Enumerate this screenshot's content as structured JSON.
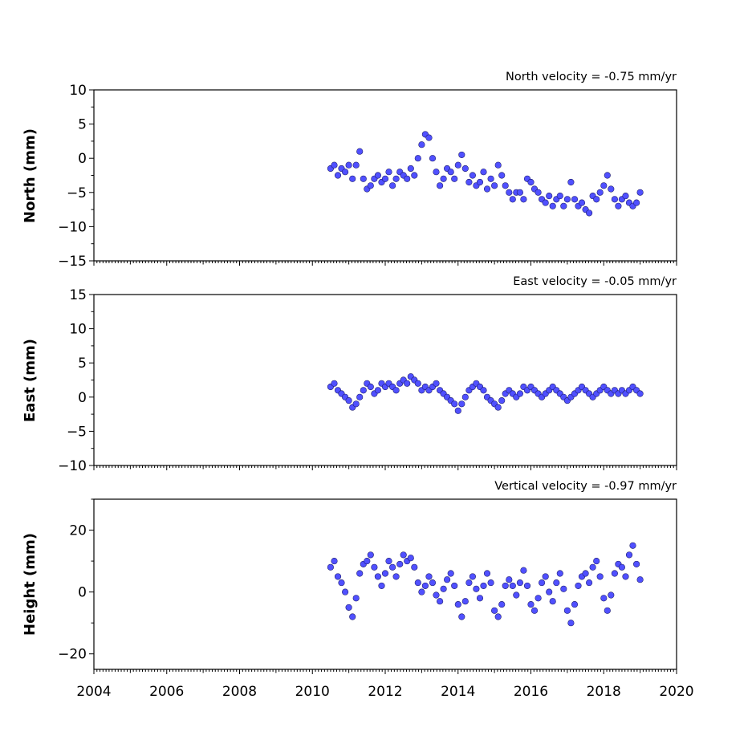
{
  "chart_data": [
    {
      "type": "scatter",
      "title": "North velocity = -0.75 mm/yr",
      "ylabel": "North (mm)",
      "xlim": [
        2004,
        2020
      ],
      "ylim": [
        -15,
        10
      ],
      "yticks": [
        -15,
        -10,
        -5,
        0,
        5,
        10
      ],
      "xticks": [
        2004,
        2006,
        2008,
        2010,
        2012,
        2014,
        2016,
        2018,
        2020
      ],
      "series": [
        {
          "color": "#5050ff",
          "x": [
            2010.5,
            2010.6,
            2010.7,
            2010.8,
            2010.9,
            2011.0,
            2011.1,
            2011.2,
            2011.3,
            2011.4,
            2011.5,
            2011.6,
            2011.7,
            2011.8,
            2011.9,
            2012.0,
            2012.1,
            2012.2,
            2012.3,
            2012.4,
            2012.5,
            2012.6,
            2012.7,
            2012.8,
            2012.9,
            2013.0,
            2013.1,
            2013.2,
            2013.3,
            2013.4,
            2013.5,
            2013.6,
            2013.7,
            2013.8,
            2013.9,
            2014.0,
            2014.1,
            2014.2,
            2014.3,
            2014.4,
            2014.5,
            2014.6,
            2014.7,
            2014.8,
            2014.9,
            2015.0,
            2015.1,
            2015.2,
            2015.3,
            2015.4,
            2015.5,
            2015.6,
            2015.7,
            2015.8,
            2015.9,
            2016.0,
            2016.1,
            2016.2,
            2016.3,
            2016.4,
            2016.5,
            2016.6,
            2016.7,
            2016.8,
            2016.9,
            2017.0,
            2017.1,
            2017.2,
            2017.3,
            2017.4,
            2017.5,
            2017.6,
            2017.7,
            2017.8,
            2017.9,
            2018.0,
            2018.1,
            2018.2,
            2018.3,
            2018.4,
            2018.5,
            2018.6,
            2018.7,
            2018.8,
            2018.9,
            2019.0
          ],
          "y": [
            -1.5,
            -1.0,
            -2.5,
            -1.5,
            -2.0,
            -1.0,
            -3.0,
            -1.0,
            1.0,
            -3.0,
            -4.5,
            -4.0,
            -3.0,
            -2.5,
            -3.5,
            -3.0,
            -2.0,
            -4.0,
            -3.0,
            -2.0,
            -2.5,
            -3.0,
            -1.5,
            -2.5,
            0.0,
            2.0,
            3.5,
            3.0,
            0.0,
            -2.0,
            -4.0,
            -3.0,
            -1.5,
            -2.0,
            -3.0,
            -1.0,
            0.5,
            -1.5,
            -3.5,
            -2.5,
            -4.0,
            -3.5,
            -2.0,
            -4.5,
            -3.0,
            -4.0,
            -1.0,
            -2.5,
            -4.0,
            -5.0,
            -6.0,
            -5.0,
            -5.0,
            -6.0,
            -3.0,
            -3.5,
            -4.5,
            -5.0,
            -6.0,
            -6.5,
            -5.5,
            -7.0,
            -6.0,
            -5.5,
            -7.0,
            -6.0,
            -3.5,
            -6.0,
            -7.0,
            -6.5,
            -7.5,
            -8.0,
            -5.5,
            -6.0,
            -5.0,
            -4.0,
            -2.5,
            -4.5,
            -6.0,
            -7.0,
            -6.0,
            -5.5,
            -6.5,
            -7.0,
            -6.5,
            -5.0
          ]
        }
      ]
    },
    {
      "type": "scatter",
      "title": "East velocity = -0.05 mm/yr",
      "ylabel": "East (mm)",
      "xlim": [
        2004,
        2020
      ],
      "ylim": [
        -10,
        15
      ],
      "yticks": [
        -10,
        -5,
        0,
        5,
        10,
        15
      ],
      "xticks": [
        2004,
        2006,
        2008,
        2010,
        2012,
        2014,
        2016,
        2018,
        2020
      ],
      "series": [
        {
          "color": "#5050ff",
          "x": [
            2010.5,
            2010.6,
            2010.7,
            2010.8,
            2010.9,
            2011.0,
            2011.1,
            2011.2,
            2011.3,
            2011.4,
            2011.5,
            2011.6,
            2011.7,
            2011.8,
            2011.9,
            2012.0,
            2012.1,
            2012.2,
            2012.3,
            2012.4,
            2012.5,
            2012.6,
            2012.7,
            2012.8,
            2012.9,
            2013.0,
            2013.1,
            2013.2,
            2013.3,
            2013.4,
            2013.5,
            2013.6,
            2013.7,
            2013.8,
            2013.9,
            2014.0,
            2014.1,
            2014.2,
            2014.3,
            2014.4,
            2014.5,
            2014.6,
            2014.7,
            2014.8,
            2014.9,
            2015.0,
            2015.1,
            2015.2,
            2015.3,
            2015.4,
            2015.5,
            2015.6,
            2015.7,
            2015.8,
            2015.9,
            2016.0,
            2016.1,
            2016.2,
            2016.3,
            2016.4,
            2016.5,
            2016.6,
            2016.7,
            2016.8,
            2016.9,
            2017.0,
            2017.1,
            2017.2,
            2017.3,
            2017.4,
            2017.5,
            2017.6,
            2017.7,
            2017.8,
            2017.9,
            2018.0,
            2018.1,
            2018.2,
            2018.3,
            2018.4,
            2018.5,
            2018.6,
            2018.7,
            2018.8,
            2018.9,
            2019.0
          ],
          "y": [
            1.5,
            2.0,
            1.0,
            0.5,
            0.0,
            -0.5,
            -1.5,
            -1.0,
            0.0,
            1.0,
            2.0,
            1.5,
            0.5,
            1.0,
            2.0,
            1.5,
            2.0,
            1.5,
            1.0,
            2.0,
            2.5,
            2.0,
            3.0,
            2.5,
            2.0,
            1.0,
            1.5,
            1.0,
            1.5,
            2.0,
            1.0,
            0.5,
            0.0,
            -0.5,
            -1.0,
            -2.0,
            -1.0,
            0.0,
            1.0,
            1.5,
            2.0,
            1.5,
            1.0,
            0.0,
            -0.5,
            -1.0,
            -1.5,
            -0.5,
            0.5,
            1.0,
            0.5,
            0.0,
            0.5,
            1.5,
            1.0,
            1.5,
            1.0,
            0.5,
            0.0,
            0.5,
            1.0,
            1.5,
            1.0,
            0.5,
            0.0,
            -0.5,
            0.0,
            0.5,
            1.0,
            1.5,
            1.0,
            0.5,
            0.0,
            0.5,
            1.0,
            1.5,
            1.0,
            0.5,
            1.0,
            0.5,
            1.0,
            0.5,
            1.0,
            1.5,
            1.0,
            0.5
          ]
        }
      ]
    },
    {
      "type": "scatter",
      "title": "Vertical velocity = -0.97 mm/yr",
      "ylabel": "Height (mm)",
      "xlim": [
        2004,
        2020
      ],
      "ylim": [
        -25,
        30
      ],
      "yticks": [
        -20,
        0,
        20
      ],
      "xticks": [
        2004,
        2006,
        2008,
        2010,
        2012,
        2014,
        2016,
        2018,
        2020
      ],
      "series": [
        {
          "color": "#5050ff",
          "x": [
            2010.5,
            2010.6,
            2010.7,
            2010.8,
            2010.9,
            2011.0,
            2011.1,
            2011.2,
            2011.3,
            2011.4,
            2011.5,
            2011.6,
            2011.7,
            2011.8,
            2011.9,
            2012.0,
            2012.1,
            2012.2,
            2012.3,
            2012.4,
            2012.5,
            2012.6,
            2012.7,
            2012.8,
            2012.9,
            2013.0,
            2013.1,
            2013.2,
            2013.3,
            2013.4,
            2013.5,
            2013.6,
            2013.7,
            2013.8,
            2013.9,
            2014.0,
            2014.1,
            2014.2,
            2014.3,
            2014.4,
            2014.5,
            2014.6,
            2014.7,
            2014.8,
            2014.9,
            2015.0,
            2015.1,
            2015.2,
            2015.3,
            2015.4,
            2015.5,
            2015.6,
            2015.7,
            2015.8,
            2015.9,
            2016.0,
            2016.1,
            2016.2,
            2016.3,
            2016.4,
            2016.5,
            2016.6,
            2016.7,
            2016.8,
            2016.9,
            2017.0,
            2017.1,
            2017.2,
            2017.3,
            2017.4,
            2017.5,
            2017.6,
            2017.7,
            2017.8,
            2017.9,
            2018.0,
            2018.1,
            2018.2,
            2018.3,
            2018.4,
            2018.5,
            2018.6,
            2018.7,
            2018.8,
            2018.9,
            2019.0
          ],
          "y": [
            8.0,
            10.0,
            5.0,
            3.0,
            0.0,
            -5.0,
            -8.0,
            -2.0,
            6.0,
            9.0,
            10.0,
            12.0,
            8.0,
            5.0,
            2.0,
            6.0,
            10.0,
            8.0,
            5.0,
            9.0,
            12.0,
            10.0,
            11.0,
            8.0,
            3.0,
            0.0,
            2.0,
            5.0,
            3.0,
            -1.0,
            -3.0,
            1.0,
            4.0,
            6.0,
            2.0,
            -4.0,
            -8.0,
            -3.0,
            3.0,
            5.0,
            1.0,
            -2.0,
            2.0,
            6.0,
            3.0,
            -6.0,
            -8.0,
            -4.0,
            2.0,
            4.0,
            2.0,
            -1.0,
            3.0,
            7.0,
            2.0,
            -4.0,
            -6.0,
            -2.0,
            3.0,
            5.0,
            0.0,
            -3.0,
            3.0,
            6.0,
            1.0,
            -6.0,
            -10.0,
            -4.0,
            2.0,
            5.0,
            6.0,
            3.0,
            8.0,
            10.0,
            5.0,
            -2.0,
            -6.0,
            -1.0,
            6.0,
            9.0,
            8.0,
            5.0,
            12.0,
            15.0,
            9.0,
            4.0
          ]
        }
      ]
    }
  ]
}
